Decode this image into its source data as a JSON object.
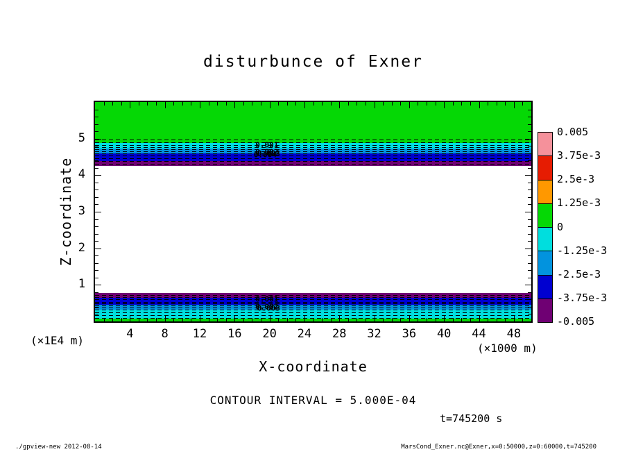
{
  "title": "disturbunce of Exner",
  "axes": {
    "x_title": "X-coordinate",
    "y_title": "Z-coordinate",
    "x_unit": "(×1000 m)",
    "y_unit": "(×1E4 m)",
    "x_range": [
      0,
      50
    ],
    "y_range": [
      0,
      6
    ],
    "x_ticks": [
      4,
      8,
      12,
      16,
      20,
      24,
      28,
      32,
      36,
      40,
      44,
      48
    ],
    "y_ticks": [
      1,
      2,
      3,
      4,
      5
    ],
    "x_minor_step": 1,
    "x_major_step": 4,
    "y_minor_step": 0.2,
    "y_major_step": 1
  },
  "annotations": {
    "contour_interval": "CONTOUR INTERVAL = 5.000E-04",
    "time": "t=745200 s",
    "footer_left": "./gpview-new  2012-08-14",
    "footer_right": "MarsCond_Exner.nc@Exner,x=0:50000,z=0:60000,t=745200"
  },
  "colorbar": {
    "labels": [
      "0.005",
      "3.75e-3",
      "2.5e-3",
      "1.25e-3",
      "0",
      "-1.25e-3",
      "-2.5e-3",
      "-3.75e-3",
      "-0.005"
    ],
    "colors": [
      "#f5919b",
      "#e61c02",
      "#ff9800",
      "#05d805",
      "#00dede",
      "#0293de",
      "#0000d0",
      "#6f0073"
    ]
  },
  "chart_data": {
    "type": "heatmap",
    "title": "disturbunce of Exner",
    "xlabel": "X-coordinate",
    "ylabel": "Z-coordinate",
    "x_unit": "(×1000 m)",
    "y_unit": "(×1E4 m)",
    "xlim": [
      0,
      50
    ],
    "ylim": [
      0,
      6
    ],
    "contour_interval": 0.0005,
    "time_seconds": 745200,
    "levels": [
      0.005,
      0.00375,
      0.0025,
      0.00125,
      0,
      -0.00125,
      -0.0025,
      -0.00375,
      -0.005
    ],
    "bands": [
      {
        "z_top": 6.0,
        "z_bottom": 4.875,
        "color": "#05d805"
      },
      {
        "z_top": 4.875,
        "z_bottom": 4.72,
        "color": "#00dede"
      },
      {
        "z_top": 4.72,
        "z_bottom": 4.59,
        "color": "#0293de"
      },
      {
        "z_top": 4.59,
        "z_bottom": 4.39,
        "color": "#0000d0"
      },
      {
        "z_top": 4.39,
        "z_bottom": 4.26,
        "color": "#6f0073"
      },
      {
        "z_top": 4.26,
        "z_bottom": 0.77,
        "color": "#ffffff"
      },
      {
        "z_top": 0.77,
        "z_bottom": 0.64,
        "color": "#6f0073"
      },
      {
        "z_top": 0.64,
        "z_bottom": 0.45,
        "color": "#0000d0"
      },
      {
        "z_top": 0.45,
        "z_bottom": 0.32,
        "color": "#0293de"
      },
      {
        "z_top": 0.32,
        "z_bottom": 0.08,
        "color": "#00dede"
      },
      {
        "z_top": 0.08,
        "z_bottom": 0.0,
        "color": "#05d805"
      }
    ],
    "contour_lines_z": {
      "top": [
        4.97,
        4.89,
        4.82,
        4.76,
        4.71,
        4.65,
        4.59,
        4.54,
        4.46,
        4.39,
        4.31
      ],
      "bottom": [
        0.73,
        0.66,
        0.6,
        0.54,
        0.49,
        0.43,
        0.375,
        0.32,
        0.24,
        0.17,
        0.09
      ]
    },
    "contour_labels": [
      {
        "text": "0.001",
        "x": 19.7,
        "z": 4.83
      },
      {
        "text": "0.002",
        "x": 19.7,
        "z": 4.63
      },
      {
        "text": "0.003",
        "x": 19.9,
        "z": 4.6
      },
      {
        "text": "0.004",
        "x": 19.5,
        "z": 4.56
      },
      {
        "text": "0.001",
        "x": 19.7,
        "z": 0.6
      },
      {
        "text": "0.002",
        "x": 19.7,
        "z": 0.4
      },
      {
        "text": "0.003",
        "x": 19.9,
        "z": 0.37
      }
    ]
  }
}
